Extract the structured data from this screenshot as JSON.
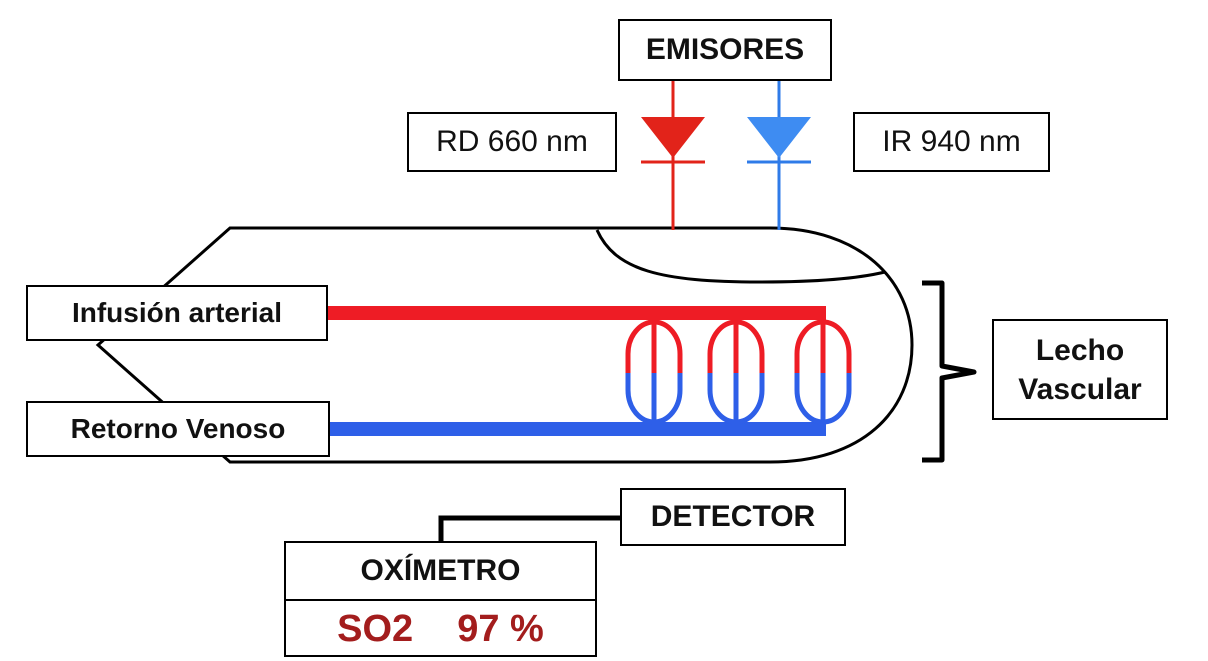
{
  "labels": {
    "emitters": "EMISORES",
    "red_led": "RD 660 nm",
    "ir_led": "IR 940 nm",
    "arterial": "Infusión arterial",
    "venous": "Retorno Venoso",
    "bed_line1": "Lecho",
    "bed_line2": "Vascular",
    "detector": "DETECTOR"
  },
  "oximeter": {
    "title": "OXÍMETRO",
    "parameter": "SO2",
    "value": "97 %"
  },
  "colors": {
    "arterial": "#ee1c25",
    "venous": "#2e5fe8",
    "red_led": "#e2231a",
    "ir_led": "#2f7be8",
    "reading": "#a31d1d",
    "outline": "#000000"
  }
}
